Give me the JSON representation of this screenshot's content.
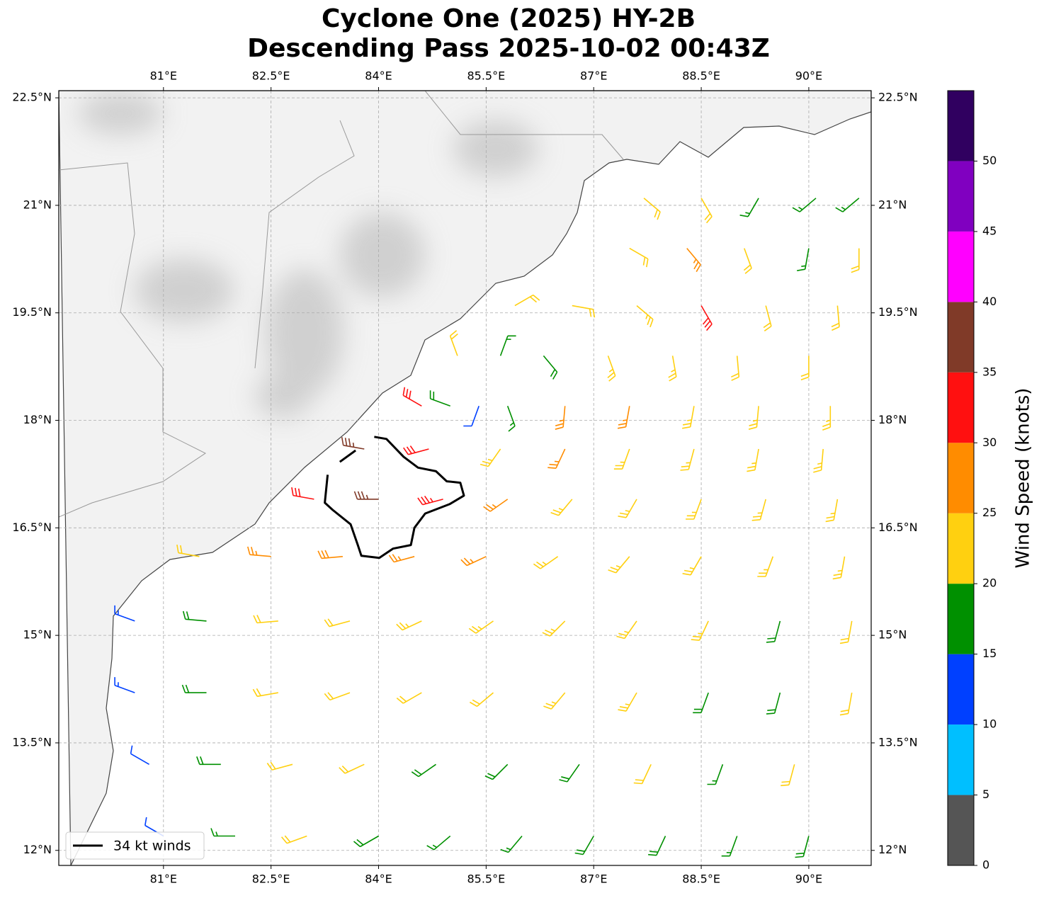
{
  "chart_data": {
    "type": "barbs",
    "title": [
      "Cyclone One (2025) HY-2B",
      "Descending Pass 2025-10-02 00:43Z"
    ],
    "xlim": [
      79.54,
      90.87
    ],
    "ylim": [
      11.79,
      22.6
    ],
    "xticks": [
      {
        "value": 81,
        "label": "81°E"
      },
      {
        "value": 82.5,
        "label": "82.5°E"
      },
      {
        "value": 84,
        "label": "84°E"
      },
      {
        "value": 85.5,
        "label": "85.5°E"
      },
      {
        "value": 87,
        "label": "87°E"
      },
      {
        "value": 88.5,
        "label": "88.5°E"
      },
      {
        "value": 90,
        "label": "90°E"
      }
    ],
    "yticks": [
      {
        "value": 12,
        "label": "12°N"
      },
      {
        "value": 13.5,
        "label": "13.5°N"
      },
      {
        "value": 15,
        "label": "15°N"
      },
      {
        "value": 16.5,
        "label": "16.5°N"
      },
      {
        "value": 18,
        "label": "18°N"
      },
      {
        "value": 19.5,
        "label": "19.5°N"
      },
      {
        "value": 21,
        "label": "21°N"
      },
      {
        "value": 22.5,
        "label": "22.5°N"
      }
    ],
    "grid": true,
    "legend": {
      "label": "34 kt winds",
      "corner": "lower left",
      "color": "#000000"
    },
    "colorbar": {
      "label": "Wind Speed (knots)",
      "lim": [
        0,
        55
      ],
      "bounds": [
        0,
        5,
        10,
        15,
        20,
        25,
        30,
        35,
        40,
        45,
        50,
        55
      ],
      "colors": [
        "#555555",
        "#00bfff",
        "#0040ff",
        "#009000",
        "#ffd010",
        "#ff8c00",
        "#ff1010",
        "#803a28",
        "#ff00ff",
        "#8000c0",
        "#300060"
      ],
      "ticks": [
        0,
        5,
        10,
        15,
        20,
        25,
        30,
        35,
        40,
        45,
        50
      ]
    },
    "contour_34kt": {
      "lon": [
        83.94,
        84.11,
        84.35,
        84.55,
        84.8,
        84.95,
        85.14,
        85.19,
        84.99,
        84.65,
        84.5,
        84.45,
        84.2,
        84.01,
        83.76,
        83.71,
        83.61,
        83.36,
        83.25,
        83.29,
        null,
        83.46,
        83.68
      ],
      "lat": [
        17.77,
        17.74,
        17.49,
        17.34,
        17.29,
        17.15,
        17.13,
        16.95,
        16.83,
        16.7,
        16.5,
        16.26,
        16.21,
        16.08,
        16.11,
        16.26,
        16.55,
        16.75,
        16.85,
        17.24,
        null,
        17.42,
        17.58
      ]
    },
    "barbs": {
      "lon": [
        81,
        82,
        83,
        84,
        85,
        86,
        87,
        88,
        89,
        90,
        80.8,
        81.8,
        82.8,
        83.8,
        84.8,
        85.8,
        86.8,
        87.8,
        88.8,
        89.8,
        80.6,
        81.6,
        82.6,
        83.6,
        84.6,
        85.6,
        86.6,
        87.6,
        88.6,
        89.6,
        90.6,
        80.6,
        81.6,
        82.6,
        83.6,
        84.6,
        85.6,
        86.6,
        87.6,
        88.6,
        89.6,
        90.6,
        81.5,
        82.5,
        83.5,
        84.5,
        85.5,
        86.5,
        87.5,
        88.5,
        89.5,
        90.5,
        83.1,
        84.0,
        84.9,
        85.8,
        86.7,
        87.6,
        88.5,
        89.4,
        90.4,
        83.8,
        84.7,
        85.7,
        86.6,
        87.5,
        88.4,
        89.3,
        90.2,
        84.6,
        85.0,
        85.4,
        85.8,
        86.6,
        87.5,
        88.4,
        89.3,
        90.3,
        85.1,
        85.7,
        86.3,
        87.2,
        88.1,
        89.0,
        90.0,
        85.9,
        86.7,
        87.6,
        88.5,
        89.4,
        90.4,
        87.5,
        88.3,
        89.1,
        90.0,
        90.7,
        87.7,
        88.5,
        89.3,
        90.1,
        90.7
      ],
      "lat": [
        12.2,
        12.2,
        12.2,
        12.2,
        12.2,
        12.2,
        12.2,
        12.2,
        12.2,
        12.2,
        13.2,
        13.2,
        13.2,
        13.2,
        13.2,
        13.2,
        13.2,
        13.2,
        13.2,
        13.2,
        14.2,
        14.2,
        14.2,
        14.2,
        14.2,
        14.2,
        14.2,
        14.2,
        14.2,
        14.2,
        14.2,
        15.2,
        15.2,
        15.2,
        15.2,
        15.2,
        15.2,
        15.2,
        15.2,
        15.2,
        15.2,
        15.2,
        16.1,
        16.1,
        16.1,
        16.1,
        16.1,
        16.1,
        16.1,
        16.1,
        16.1,
        16.1,
        16.9,
        16.9,
        16.9,
        16.9,
        16.9,
        16.9,
        16.9,
        16.9,
        16.9,
        17.6,
        17.6,
        17.6,
        17.6,
        17.6,
        17.6,
        17.6,
        17.6,
        18.2,
        18.2,
        18.2,
        18.2,
        18.2,
        18.2,
        18.2,
        18.2,
        18.2,
        18.9,
        18.9,
        18.9,
        18.9,
        18.9,
        18.9,
        18.9,
        19.6,
        19.6,
        19.6,
        19.6,
        19.6,
        19.6,
        20.4,
        20.4,
        20.4,
        20.4,
        20.4,
        21.1,
        21.1,
        21.1,
        21.1,
        21.1
      ],
      "speed": [
        11,
        17,
        22,
        18,
        17,
        17,
        18,
        19,
        17,
        18,
        12,
        19,
        22,
        21,
        18,
        18,
        19,
        22,
        17,
        22,
        13,
        18,
        22,
        21,
        22,
        22,
        23,
        23,
        19,
        18,
        22,
        14,
        19,
        22,
        22,
        23,
        23,
        23,
        23,
        23,
        19,
        22,
        22,
        26,
        28,
        27,
        25,
        24,
        23,
        23,
        23,
        23,
        31,
        37,
        33,
        26,
        24,
        24,
        23,
        23,
        23,
        36,
        31,
        24,
        25,
        24,
        23,
        23,
        23,
        32,
        18,
        12,
        17,
        25,
        25,
        23,
        23,
        23,
        22,
        17,
        19,
        24,
        24,
        22,
        22,
        22,
        22,
        24,
        30,
        22,
        22,
        22,
        25,
        20,
        17,
        22,
        22,
        22,
        17,
        17,
        17
      ],
      "direction": [
        300,
        270,
        250,
        240,
        230,
        220,
        210,
        205,
        200,
        195,
        300,
        270,
        255,
        245,
        235,
        225,
        215,
        205,
        200,
        195,
        290,
        270,
        260,
        250,
        240,
        230,
        220,
        210,
        200,
        195,
        190,
        290,
        275,
        265,
        255,
        245,
        235,
        225,
        215,
        205,
        195,
        190,
        280,
        275,
        265,
        255,
        245,
        235,
        220,
        210,
        200,
        190,
        280,
        270,
        255,
        235,
        220,
        210,
        200,
        195,
        190,
        280,
        255,
        215,
        205,
        200,
        195,
        190,
        185,
        300,
        290,
        200,
        160,
        185,
        190,
        190,
        185,
        180,
        340,
        20,
        140,
        160,
        170,
        175,
        180,
        60,
        100,
        130,
        150,
        165,
        175,
        120,
        140,
        160,
        190,
        180,
        130,
        150,
        210,
        230,
        230
      ]
    }
  }
}
